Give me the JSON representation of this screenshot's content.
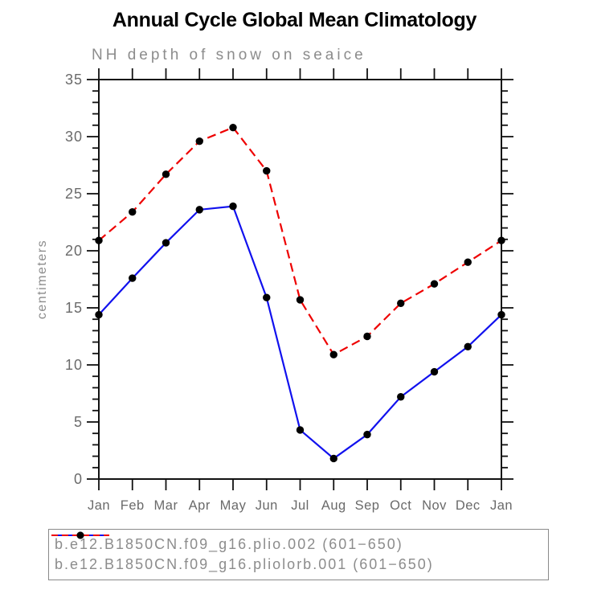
{
  "title": "Annual Cycle Global Mean Climatology",
  "chart_data": {
    "type": "line",
    "title": "Annual Cycle Global Mean Climatology",
    "subtitle": "NH depth of snow on seaice",
    "ylabel": "centimeters",
    "xlabel": "",
    "categories": [
      "Jan",
      "Feb",
      "Mar",
      "Apr",
      "May",
      "Jun",
      "Jul",
      "Aug",
      "Sep",
      "Oct",
      "Nov",
      "Dec",
      "Jan"
    ],
    "ylim": [
      0,
      35
    ],
    "ytick_major_step": 5,
    "ytick_minor_step": 1,
    "grid": false,
    "legend_position": "bottom",
    "series": [
      {
        "name": "b.e12.B1850CN.f09_g16.plio.002 (601−650)",
        "color": "#1111ee",
        "line_style": "solid",
        "marker": "circle",
        "marker_color": "#000000",
        "values": [
          14.4,
          17.6,
          20.7,
          23.6,
          23.9,
          15.9,
          4.3,
          1.8,
          3.9,
          7.2,
          9.4,
          11.6,
          14.4
        ]
      },
      {
        "name": "b.e12.B1850CN.f09_g16.pliolorb.001 (601−650)",
        "color": "#ee0000",
        "line_style": "dashed",
        "marker": "circle",
        "marker_color": "#000000",
        "values": [
          20.9,
          23.4,
          26.7,
          29.6,
          30.8,
          27.0,
          15.7,
          10.9,
          12.5,
          15.4,
          17.1,
          19.0,
          20.9
        ]
      }
    ]
  },
  "colors": {
    "axis": "#111111",
    "tick_label": "#6a6a6a",
    "muted_text": "#8c8c8c",
    "legend_border": "#8a8a8a",
    "background": "#ffffff"
  }
}
